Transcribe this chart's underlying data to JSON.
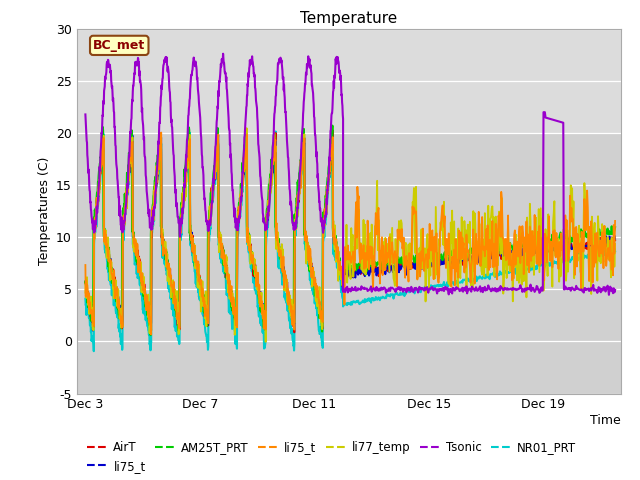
{
  "title": "Temperature",
  "xlabel": "Time",
  "ylabel": "Temperatures (C)",
  "ylim": [
    -5,
    30
  ],
  "plot_bg_light": "#dcdcdc",
  "plot_bg_dark": "#c8c8c8",
  "xtick_labels": [
    "Dec 3",
    "Dec 7",
    "Dec 11",
    "Dec 15",
    "Dec 19"
  ],
  "xtick_pos": [
    0,
    4,
    8,
    12,
    16
  ],
  "ytick_labels": [
    "-5",
    "0",
    "5",
    "10",
    "15",
    "20",
    "25",
    "30"
  ],
  "ytick_pos": [
    -5,
    0,
    5,
    10,
    15,
    20,
    25,
    30
  ],
  "grid_color": "#ffffff",
  "series": [
    {
      "label": "AirT",
      "color": "#dd0000",
      "lw": 1.3,
      "ls": "-",
      "zorder": 5
    },
    {
      "label": "li75_t",
      "color": "#0000cc",
      "lw": 1.3,
      "ls": "-",
      "zorder": 5
    },
    {
      "label": "AM25T_PRT",
      "color": "#00cc00",
      "lw": 1.5,
      "ls": "-",
      "zorder": 6
    },
    {
      "label": "li75_t",
      "color": "#ff8800",
      "lw": 1.3,
      "ls": "-",
      "zorder": 7
    },
    {
      "label": "li77_temp",
      "color": "#cccc00",
      "lw": 1.3,
      "ls": "-",
      "zorder": 6
    },
    {
      "label": "Tsonic",
      "color": "#9900cc",
      "lw": 1.5,
      "ls": "-",
      "zorder": 8
    },
    {
      "label": "NR01_PRT",
      "color": "#00cccc",
      "lw": 1.5,
      "ls": "-",
      "zorder": 4
    }
  ],
  "annotation": {
    "label": "BC_met",
    "bg": "#ffffc0",
    "edge": "#8B4513",
    "text_color": "#8B0000"
  },
  "xlim": [
    -0.3,
    18.7
  ]
}
